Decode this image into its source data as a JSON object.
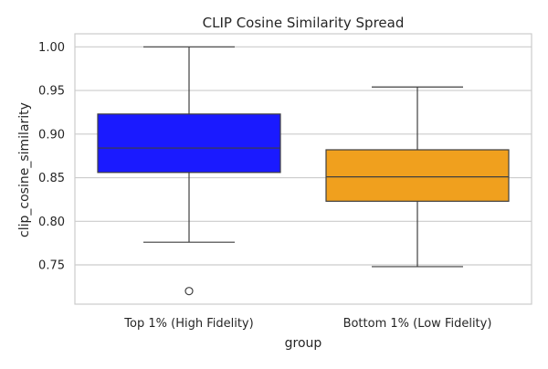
{
  "chart_data": {
    "type": "box",
    "title": "CLIP Cosine Similarity Spread",
    "xlabel": "group",
    "ylabel": "clip_cosine_similarity",
    "categories": [
      "Top 1% (High Fidelity)",
      "Bottom 1% (Low Fidelity)"
    ],
    "ylim": [
      0.705,
      1.015
    ],
    "yticks": [
      0.75,
      0.8,
      0.85,
      0.9,
      0.95,
      1.0
    ],
    "ytick_labels": [
      "0.75",
      "0.80",
      "0.85",
      "0.90",
      "0.95",
      "1.00"
    ],
    "grid": true,
    "boxes": [
      {
        "category": "Top 1% (High Fidelity)",
        "whisker_low": 0.776,
        "q1": 0.856,
        "median": 0.884,
        "q3": 0.923,
        "whisker_high": 1.0,
        "outliers": [
          0.72
        ],
        "color": "#1a1aff"
      },
      {
        "category": "Bottom 1% (Low Fidelity)",
        "whisker_low": 0.748,
        "q1": 0.823,
        "median": 0.851,
        "q3": 0.882,
        "whisker_high": 0.954,
        "outliers": [],
        "color": "#f0a01e"
      }
    ],
    "colors": {
      "grid": "#cccccc",
      "frame": "#cccccc",
      "line": "#3f3f3f"
    }
  }
}
